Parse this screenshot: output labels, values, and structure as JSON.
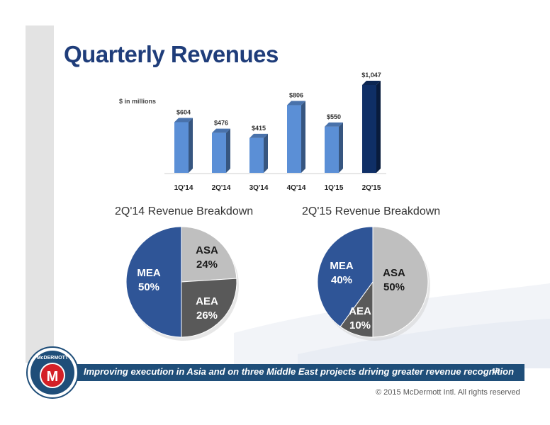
{
  "slide": {
    "title": "Quarterly Revenues",
    "units_note": "$ in millions",
    "footer_banner": "Improving execution in Asia and on three Middle East projects driving greater revenue recognition",
    "page_number": "16",
    "copyright": "© 2015 McDermott Intl. All rights reserved",
    "logo_text": "McDERMOTT",
    "logo_letter": "M"
  },
  "colors": {
    "title": "#1f3d7a",
    "bar": "#5b8fd6",
    "bar_highlight": "#0f2f66",
    "mea": "#2f5597",
    "asa": "#bfbfbf",
    "aea": "#595959",
    "banner": "#1f4e79"
  },
  "chart_data": [
    {
      "type": "bar",
      "title": "",
      "categories": [
        "1Q'14",
        "2Q'14",
        "3Q'14",
        "4Q'14",
        "1Q'15",
        "2Q'15"
      ],
      "values": [
        604,
        476,
        415,
        806,
        550,
        1047
      ],
      "value_labels": [
        "$604",
        "$476",
        "$415",
        "$806",
        "$550",
        "$1,047"
      ],
      "ylabel": "$ in millions",
      "ylim": [
        0,
        1100
      ],
      "highlight_index": 5,
      "grid": false
    },
    {
      "type": "pie",
      "title": "2Q'14 Revenue Breakdown",
      "slices": [
        {
          "label": "ASA",
          "value": 24,
          "display": "24%"
        },
        {
          "label": "AEA",
          "value": 26,
          "display": "26%"
        },
        {
          "label": "MEA",
          "value": 50,
          "display": "50%"
        }
      ]
    },
    {
      "type": "pie",
      "title": "2Q'15 Revenue Breakdown",
      "slices": [
        {
          "label": "ASA",
          "value": 50,
          "display": "50%"
        },
        {
          "label": "AEA",
          "value": 10,
          "display": "10%"
        },
        {
          "label": "MEA",
          "value": 40,
          "display": "40%"
        }
      ]
    }
  ]
}
